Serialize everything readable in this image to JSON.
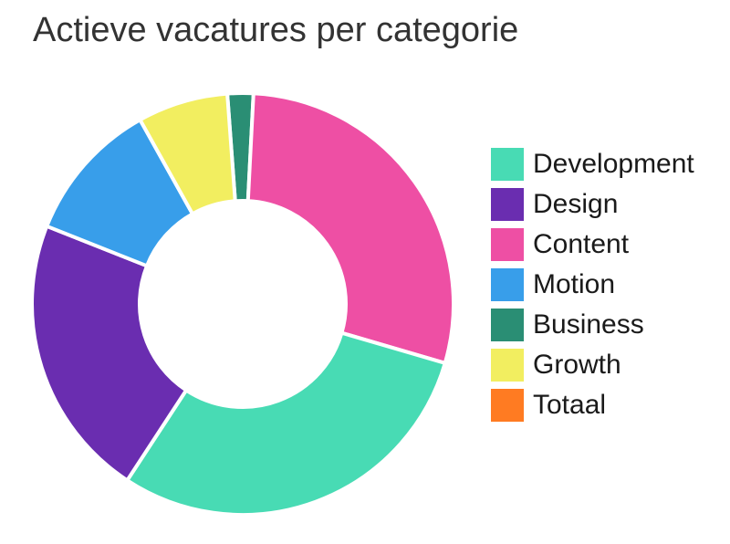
{
  "chart_data": {
    "type": "pie",
    "title": "Actieve vacatures per categorie",
    "donut": true,
    "legend_position": "right",
    "start_angle_deg": -4.2,
    "categories": [
      "Development",
      "Design",
      "Content",
      "Motion",
      "Business",
      "Growth",
      "Totaal"
    ],
    "colors": [
      "#48DBB4",
      "#6A2DB0",
      "#EE4FA4",
      "#389EEA",
      "#2A8E74",
      "#F2EE60",
      "#FF7B22"
    ],
    "slice_order": [
      "Business",
      "Content",
      "Development",
      "Design",
      "Motion",
      "Growth"
    ],
    "values": {
      "Development": 30.0,
      "Design": 22.0,
      "Content": 29.0,
      "Motion": 11.0,
      "Business": 2.0,
      "Growth": 7.0,
      "Totaal": 0
    }
  }
}
